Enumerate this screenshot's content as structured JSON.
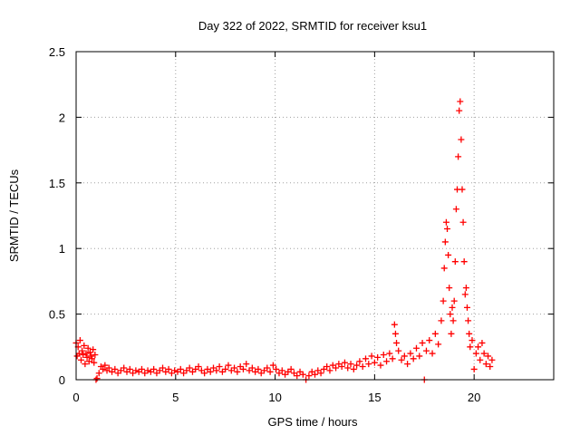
{
  "chart_data": {
    "type": "scatter",
    "title": "Day 322 of 2022, SRMTID for receiver ksu1",
    "xlabel": "GPS time / hours",
    "ylabel": "SRMTID / TECUs",
    "xlim": [
      0,
      24
    ],
    "ylim": [
      0,
      2.5
    ],
    "x_ticks": [
      0,
      5,
      10,
      15,
      20
    ],
    "x_tick_labels": [
      "0",
      "5",
      "10",
      "15",
      "20"
    ],
    "y_ticks": [
      0,
      0.5,
      1,
      1.5,
      2,
      2.5
    ],
    "y_tick_labels": [
      "0",
      "0.5",
      "1",
      "1.5",
      "2",
      "2.5"
    ],
    "grid": true,
    "marker": "+",
    "series": [
      {
        "name": "ksu1",
        "color": "#ff0000",
        "points": [
          [
            0.0,
            0.28
          ],
          [
            0.05,
            0.18
          ],
          [
            0.1,
            0.25
          ],
          [
            0.15,
            0.2
          ],
          [
            0.2,
            0.3
          ],
          [
            0.25,
            0.15
          ],
          [
            0.3,
            0.22
          ],
          [
            0.35,
            0.19
          ],
          [
            0.4,
            0.26
          ],
          [
            0.45,
            0.12
          ],
          [
            0.5,
            0.2
          ],
          [
            0.55,
            0.17
          ],
          [
            0.6,
            0.24
          ],
          [
            0.65,
            0.14
          ],
          [
            0.7,
            0.21
          ],
          [
            0.75,
            0.18
          ],
          [
            0.8,
            0.16
          ],
          [
            0.85,
            0.23
          ],
          [
            0.9,
            0.13
          ],
          [
            0.95,
            0.19
          ],
          [
            1.0,
            0.0
          ],
          [
            1.05,
            0.01
          ],
          [
            1.15,
            0.05
          ],
          [
            1.25,
            0.1
          ],
          [
            1.35,
            0.08
          ],
          [
            1.45,
            0.11
          ],
          [
            1.55,
            0.07
          ],
          [
            1.65,
            0.09
          ],
          [
            1.8,
            0.06
          ],
          [
            1.95,
            0.08
          ],
          [
            2.1,
            0.05
          ],
          [
            2.25,
            0.07
          ],
          [
            2.4,
            0.09
          ],
          [
            2.55,
            0.06
          ],
          [
            2.7,
            0.08
          ],
          [
            2.85,
            0.05
          ],
          [
            3.0,
            0.07
          ],
          [
            3.15,
            0.06
          ],
          [
            3.3,
            0.08
          ],
          [
            3.45,
            0.05
          ],
          [
            3.6,
            0.07
          ],
          [
            3.75,
            0.06
          ],
          [
            3.9,
            0.08
          ],
          [
            4.05,
            0.05
          ],
          [
            4.2,
            0.07
          ],
          [
            4.35,
            0.09
          ],
          [
            4.5,
            0.06
          ],
          [
            4.65,
            0.08
          ],
          [
            4.8,
            0.05
          ],
          [
            4.95,
            0.07
          ],
          [
            5.1,
            0.06
          ],
          [
            5.25,
            0.08
          ],
          [
            5.4,
            0.05
          ],
          [
            5.55,
            0.07
          ],
          [
            5.7,
            0.09
          ],
          [
            5.85,
            0.06
          ],
          [
            6.0,
            0.08
          ],
          [
            6.15,
            0.1
          ],
          [
            6.3,
            0.07
          ],
          [
            6.45,
            0.05
          ],
          [
            6.6,
            0.08
          ],
          [
            6.75,
            0.06
          ],
          [
            6.9,
            0.09
          ],
          [
            7.05,
            0.07
          ],
          [
            7.2,
            0.1
          ],
          [
            7.35,
            0.06
          ],
          [
            7.5,
            0.08
          ],
          [
            7.65,
            0.11
          ],
          [
            7.8,
            0.07
          ],
          [
            7.95,
            0.09
          ],
          [
            8.1,
            0.06
          ],
          [
            8.25,
            0.1
          ],
          [
            8.4,
            0.08
          ],
          [
            8.55,
            0.12
          ],
          [
            8.7,
            0.07
          ],
          [
            8.85,
            0.09
          ],
          [
            9.0,
            0.06
          ],
          [
            9.15,
            0.08
          ],
          [
            9.3,
            0.05
          ],
          [
            9.45,
            0.07
          ],
          [
            9.6,
            0.09
          ],
          [
            9.75,
            0.06
          ],
          [
            9.9,
            0.11
          ],
          [
            10.05,
            0.08
          ],
          [
            10.2,
            0.05
          ],
          [
            10.35,
            0.07
          ],
          [
            10.5,
            0.04
          ],
          [
            10.65,
            0.06
          ],
          [
            10.8,
            0.08
          ],
          [
            10.95,
            0.05
          ],
          [
            11.1,
            0.03
          ],
          [
            11.25,
            0.06
          ],
          [
            11.4,
            0.04
          ],
          [
            11.55,
            0.0
          ],
          [
            11.7,
            0.03
          ],
          [
            11.85,
            0.06
          ],
          [
            12.0,
            0.04
          ],
          [
            12.15,
            0.07
          ],
          [
            12.3,
            0.05
          ],
          [
            12.45,
            0.08
          ],
          [
            12.6,
            0.1
          ],
          [
            12.75,
            0.07
          ],
          [
            12.9,
            0.11
          ],
          [
            13.05,
            0.09
          ],
          [
            13.2,
            0.12
          ],
          [
            13.35,
            0.1
          ],
          [
            13.5,
            0.13
          ],
          [
            13.65,
            0.09
          ],
          [
            13.8,
            0.12
          ],
          [
            13.95,
            0.08
          ],
          [
            14.1,
            0.11
          ],
          [
            14.25,
            0.14
          ],
          [
            14.4,
            0.1
          ],
          [
            14.55,
            0.16
          ],
          [
            14.7,
            0.12
          ],
          [
            14.85,
            0.18
          ],
          [
            15.0,
            0.13
          ],
          [
            15.15,
            0.17
          ],
          [
            15.3,
            0.11
          ],
          [
            15.45,
            0.19
          ],
          [
            15.6,
            0.14
          ],
          [
            15.75,
            0.2
          ],
          [
            15.9,
            0.16
          ],
          [
            16.0,
            0.42
          ],
          [
            16.05,
            0.35
          ],
          [
            16.1,
            0.28
          ],
          [
            16.2,
            0.22
          ],
          [
            16.35,
            0.15
          ],
          [
            16.5,
            0.18
          ],
          [
            16.65,
            0.12
          ],
          [
            16.8,
            0.2
          ],
          [
            16.95,
            0.16
          ],
          [
            17.1,
            0.24
          ],
          [
            17.25,
            0.18
          ],
          [
            17.4,
            0.28
          ],
          [
            17.5,
            0.0
          ],
          [
            17.6,
            0.22
          ],
          [
            17.75,
            0.3
          ],
          [
            17.9,
            0.2
          ],
          [
            18.05,
            0.35
          ],
          [
            18.2,
            0.27
          ],
          [
            18.35,
            0.45
          ],
          [
            18.45,
            0.6
          ],
          [
            18.5,
            0.85
          ],
          [
            18.55,
            1.05
          ],
          [
            18.6,
            1.2
          ],
          [
            18.65,
            1.15
          ],
          [
            18.7,
            0.95
          ],
          [
            18.75,
            0.7
          ],
          [
            18.8,
            0.5
          ],
          [
            18.85,
            0.35
          ],
          [
            18.9,
            0.55
          ],
          [
            18.95,
            0.45
          ],
          [
            19.0,
            0.6
          ],
          [
            19.05,
            0.9
          ],
          [
            19.1,
            1.3
          ],
          [
            19.15,
            1.45
          ],
          [
            19.2,
            1.7
          ],
          [
            19.25,
            2.05
          ],
          [
            19.3,
            2.12
          ],
          [
            19.35,
            1.83
          ],
          [
            19.4,
            1.45
          ],
          [
            19.45,
            1.2
          ],
          [
            19.5,
            0.9
          ],
          [
            19.55,
            0.65
          ],
          [
            19.6,
            0.7
          ],
          [
            19.65,
            0.55
          ],
          [
            19.7,
            0.45
          ],
          [
            19.75,
            0.35
          ],
          [
            19.8,
            0.25
          ],
          [
            19.9,
            0.3
          ],
          [
            20.0,
            0.08
          ],
          [
            20.1,
            0.2
          ],
          [
            20.2,
            0.25
          ],
          [
            20.3,
            0.15
          ],
          [
            20.4,
            0.28
          ],
          [
            20.5,
            0.2
          ],
          [
            20.6,
            0.12
          ],
          [
            20.7,
            0.18
          ],
          [
            20.8,
            0.1
          ],
          [
            20.9,
            0.15
          ]
        ]
      }
    ]
  }
}
